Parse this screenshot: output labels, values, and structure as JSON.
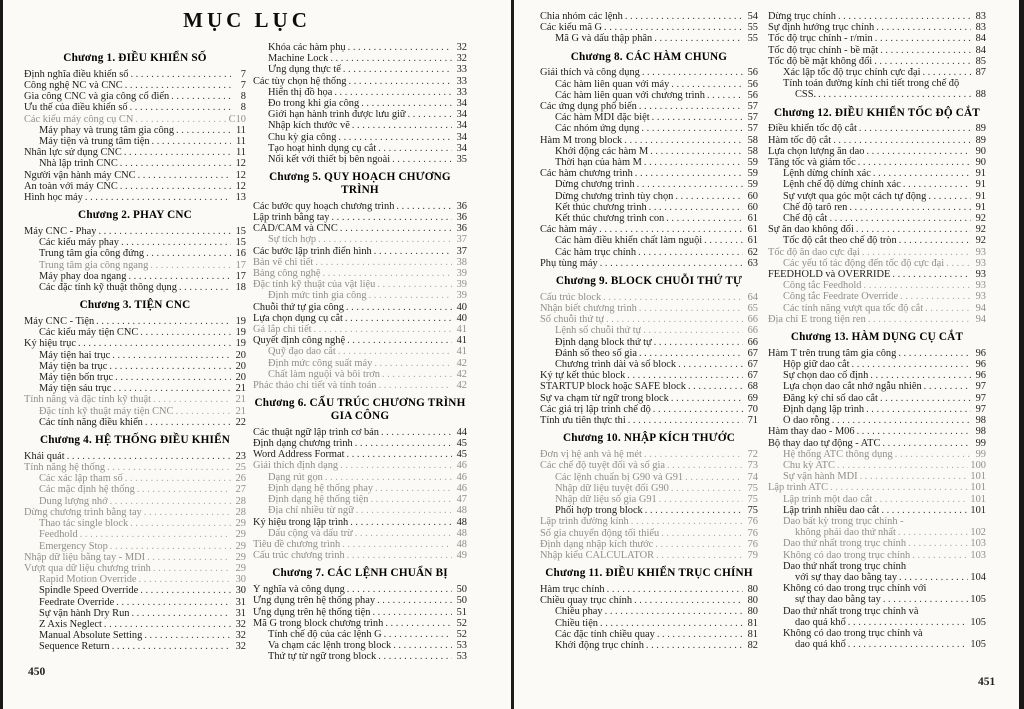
{
  "title": "MỤC LỤC",
  "folio_left": "450",
  "folio_right": "451",
  "columns": [
    {
      "items": [
        {
          "h": "Chương 1. ĐIỀU KHIỂN SỐ"
        },
        {
          "t": "Định nghĩa điều khiển số",
          "p": "7"
        },
        {
          "t": "Công nghệ NC và CNC",
          "p": "7"
        },
        {
          "t": "Gia công CNC và gia công cổ điển",
          "p": "8"
        },
        {
          "t": "Ưu thế của điều khiển số",
          "p": "8"
        },
        {
          "t": "Các kiểu máy công cụ CN",
          "p": "C10",
          "f": 1
        },
        {
          "t": "Máy phay và trung tâm gia công",
          "p": "11",
          "i": 1
        },
        {
          "t": "Máy tiện và trung tâm tiện",
          "p": "11",
          "i": 1
        },
        {
          "t": "Nhân lực sử dụng CNC",
          "p": "11"
        },
        {
          "t": "Nhà lập trình CNC",
          "p": "12",
          "i": 1
        },
        {
          "t": "Người vận hành máy CNC",
          "p": "12"
        },
        {
          "t": "An toàn với máy CNC",
          "p": "12"
        },
        {
          "t": "Hình học máy",
          "p": "13"
        },
        {
          "h": "Chương 2. PHAY CNC"
        },
        {
          "t": "Máy CNC - Phay",
          "p": "15"
        },
        {
          "t": "Các kiểu máy phay",
          "p": "15",
          "i": 1
        },
        {
          "t": "Trung tâm gia công đứng",
          "p": "16",
          "i": 1
        },
        {
          "t": "Trung tâm gia công ngang",
          "p": "17",
          "i": 1,
          "f": 1
        },
        {
          "t": "Máy phay doa ngang",
          "p": "17",
          "i": 1
        },
        {
          "t": "Các đặc tính kỹ thuật thông dụng",
          "p": "18",
          "i": 1
        },
        {
          "h": "Chương 3. TIỆN CNC"
        },
        {
          "t": "Máy CNC - Tiện",
          "p": "19"
        },
        {
          "t": "Các kiểu máy tiện CNC",
          "p": "19",
          "i": 1
        },
        {
          "t": "Ký hiệu trục",
          "p": "19"
        },
        {
          "t": "Máy tiện hai trục",
          "p": "20",
          "i": 1
        },
        {
          "t": "Máy tiện ba trục",
          "p": "20",
          "i": 1
        },
        {
          "t": "Máy tiện bốn trục",
          "p": "20",
          "i": 1
        },
        {
          "t": "Máy tiện sáu trục",
          "p": "21",
          "i": 1
        },
        {
          "t": "Tính năng và đặc tính kỹ thuật",
          "p": "21",
          "f": 1
        },
        {
          "t": "Đặc tính kỹ thuật máy tiện CNC",
          "p": "21",
          "i": 1,
          "f": 1
        },
        {
          "t": "Các tính năng điều khiển",
          "p": "22",
          "i": 1
        },
        {
          "h": "Chương 4. HỆ THỐNG ĐIỀU KHIỂN"
        },
        {
          "t": "Khái quát",
          "p": "23"
        },
        {
          "t": "Tính năng hệ thống",
          "p": "25",
          "f": 1
        },
        {
          "t": "Các xác lập tham số",
          "p": "26",
          "i": 1,
          "f": 1
        },
        {
          "t": "Các mặc định hệ thống",
          "p": "27",
          "i": 1,
          "f": 1
        },
        {
          "t": "Dung lượng nhớ",
          "p": "28",
          "i": 1,
          "f": 1
        },
        {
          "t": "Dừng chương trình bằng tay",
          "p": "28",
          "f": 1
        },
        {
          "t": "Thao tác single block",
          "p": "29",
          "i": 1,
          "f": 1
        },
        {
          "t": "Feedhold",
          "p": "29",
          "i": 1,
          "f": 1
        },
        {
          "t": "Emergency Stop",
          "p": "29",
          "i": 1,
          "f": 1
        },
        {
          "t": "Nhập dữ liệu bằng tay - MDI",
          "p": "29",
          "f": 1
        },
        {
          "t": "Vượt qua dữ liệu chương trình",
          "p": "29",
          "f": 1
        },
        {
          "t": "Rapid Motion Override",
          "p": "30",
          "i": 1,
          "f": 1
        },
        {
          "t": "Spindle Speed Override",
          "p": "30",
          "i": 1
        },
        {
          "t": "Feedrate Override",
          "p": "31",
          "i": 1
        },
        {
          "t": "Sự vận hành Dry Run",
          "p": "31",
          "i": 1
        },
        {
          "t": "Z Axis Neglect",
          "p": "32",
          "i": 1
        },
        {
          "t": "Manual Absolute Setting",
          "p": "32",
          "i": 1
        },
        {
          "t": "Sequence Return",
          "p": "32",
          "i": 1
        }
      ]
    },
    {
      "items": [
        {
          "t": "Khóa các hàm phụ",
          "p": "32",
          "i": 1
        },
        {
          "t": "Machine Lock",
          "p": "32",
          "i": 1
        },
        {
          "t": "Ứng dụng thực tế",
          "p": "33",
          "i": 1
        },
        {
          "t": "Các tùy chọn hệ thống",
          "p": "33"
        },
        {
          "t": "Hiển thị đồ họa",
          "p": "33",
          "i": 1
        },
        {
          "t": "Đo trong khi gia công",
          "p": "34",
          "i": 1
        },
        {
          "t": "Giới hạn hành trình được lưu giữ",
          "p": "34",
          "i": 1
        },
        {
          "t": "Nhập kích thước vẽ",
          "p": "34",
          "i": 1
        },
        {
          "t": "Chu kỳ gia công",
          "p": "34",
          "i": 1
        },
        {
          "t": "Tạo hoạt hình dụng cụ cắt",
          "p": "34",
          "i": 1
        },
        {
          "t": "Nối kết với thiết bị bên ngoài",
          "p": "35",
          "i": 1
        },
        {
          "h": "Chương 5. QUY HOẠCH CHƯƠNG TRÌNH"
        },
        {
          "t": "Các bước quy hoạch chương trình",
          "p": "36"
        },
        {
          "t": "Lập trình bằng tay",
          "p": "36"
        },
        {
          "t": "CAD/CAM và CNC",
          "p": "36"
        },
        {
          "t": "Sự tích hợp",
          "p": "37",
          "i": 1,
          "f": 1
        },
        {
          "t": "Các bước lập trình điển hình",
          "p": "37"
        },
        {
          "t": "Bản vẽ chi tiết",
          "p": "38",
          "f": 1
        },
        {
          "t": "Bảng công nghệ",
          "p": "39",
          "f": 1
        },
        {
          "t": "Đặc tính kỹ thuật của vật liệu",
          "p": "39",
          "f": 1
        },
        {
          "t": "Định mức tinh gia công",
          "p": "39",
          "i": 1,
          "f": 1
        },
        {
          "t": "Chuỗi thứ tự gia công",
          "p": "40"
        },
        {
          "t": "Lựa chọn dụng cụ cắt",
          "p": "40"
        },
        {
          "t": "Gá lắp chi tiết",
          "p": "41",
          "f": 1
        },
        {
          "t": "Quyết định công nghệ",
          "p": "41"
        },
        {
          "t": "Quỹ đạo dao cắt",
          "p": "41",
          "i": 1,
          "f": 1
        },
        {
          "t": "Định mức công suất máy",
          "p": "42",
          "i": 1,
          "f": 1
        },
        {
          "t": "Chất làm nguội và bôi trơn",
          "p": "42",
          "i": 1,
          "f": 1
        },
        {
          "t": "Phác thảo chi tiết và tính toán",
          "p": "42",
          "f": 1
        },
        {
          "h": [
            "Chương 6. CẤU TRÚC CHƯƠNG TRÌNH",
            "GIA CÔNG"
          ]
        },
        {
          "t": "Các thuật ngữ lập trình cơ bản",
          "p": "44"
        },
        {
          "t": "Định dạng chương trình",
          "p": "45"
        },
        {
          "t": "Word Address Format",
          "p": "45"
        },
        {
          "t": "Giải thích định dạng",
          "p": "46",
          "f": 1
        },
        {
          "t": "Dạng rút gọn",
          "p": "46",
          "i": 1,
          "f": 1
        },
        {
          "t": "Định dạng hệ thống phay",
          "p": "46",
          "i": 1,
          "f": 1
        },
        {
          "t": "Định dạng hệ thống tiện",
          "p": "47",
          "i": 1,
          "f": 1
        },
        {
          "t": "Địa chỉ nhiều từ ngữ",
          "p": "48",
          "i": 1,
          "f": 1
        },
        {
          "t": "Ký hiệu trong lập trình",
          "p": "48"
        },
        {
          "t": "Dấu cộng và dấu trừ",
          "p": "48",
          "i": 1,
          "f": 1
        },
        {
          "t": "Tiêu đề chương trình",
          "p": "48",
          "f": 1
        },
        {
          "t": "Cấu trúc chương trình",
          "p": "49",
          "f": 1
        },
        {
          "h": "Chương 7. CÁC LỆNH CHUẨN BỊ"
        },
        {
          "t": "Ý nghĩa và công dụng",
          "p": "50"
        },
        {
          "t": "Ứng dụng trên hệ thống phay",
          "p": "50"
        },
        {
          "t": "Ứng dụng trên hệ thống tiện",
          "p": "51"
        },
        {
          "t": "Mã G trong block chương trình",
          "p": "52"
        },
        {
          "t": "Tính chế độ của các lệnh G",
          "p": "52",
          "i": 1
        },
        {
          "t": "Va chạm các lệnh trong block",
          "p": "53",
          "i": 1
        },
        {
          "t": "Thứ tự từ ngữ trong block",
          "p": "53",
          "i": 1
        }
      ]
    },
    {
      "items": [
        {
          "t": "Chia nhóm các lệnh",
          "p": "54"
        },
        {
          "t": "Các kiểu mã G",
          "p": "55"
        },
        {
          "t": "Mã G và dấu thập phân",
          "p": "55",
          "i": 1
        },
        {
          "h": "Chương 8. CÁC HÀM CHUNG"
        },
        {
          "t": "Giải thích và công dụng",
          "p": "56"
        },
        {
          "t": "Các hàm liên quan với máy",
          "p": "56",
          "i": 1
        },
        {
          "t": "Các hàm liên quan với chương trình",
          "p": "56",
          "i": 1
        },
        {
          "t": "Các ứng dụng phổ biến",
          "p": "57"
        },
        {
          "t": "Các hàm MDI đặc biệt",
          "p": "57",
          "i": 1
        },
        {
          "t": "Các nhóm ứng dụng",
          "p": "57",
          "i": 1
        },
        {
          "t": "Hàm M trong block",
          "p": "58"
        },
        {
          "t": "Khởi động các hàm M",
          "p": "58",
          "i": 1
        },
        {
          "t": "Thời hạn của hàm M",
          "p": "59",
          "i": 1
        },
        {
          "t": "Các hàm chương trình",
          "p": "59"
        },
        {
          "t": "Dừng chương trình",
          "p": "59",
          "i": 1
        },
        {
          "t": "Dừng chương trình tùy chọn",
          "p": "60",
          "i": 1
        },
        {
          "t": "Kết thúc chương trình",
          "p": "60",
          "i": 1
        },
        {
          "t": "Kết thúc chương trình con",
          "p": "61",
          "i": 1
        },
        {
          "t": "Các hàm máy",
          "p": "61"
        },
        {
          "t": "Các hàm điều khiển chất làm nguội",
          "p": "61",
          "i": 1
        },
        {
          "t": "Các hàm trục chính",
          "p": "62",
          "i": 1
        },
        {
          "t": "Phụ tùng máy",
          "p": "63"
        },
        {
          "h": "Chương 9. BLOCK CHUỖI THỨ TỰ"
        },
        {
          "t": "Cấu trúc block",
          "p": "64",
          "f": 1
        },
        {
          "t": "Nhận biết chương trình",
          "p": "65",
          "f": 1
        },
        {
          "t": "Số chuỗi thứ tự",
          "p": "66",
          "f": 1
        },
        {
          "t": "Lệnh số chuỗi thứ tự",
          "p": "66",
          "i": 1,
          "f": 1
        },
        {
          "t": "Định dạng block thứ tự",
          "p": "66",
          "i": 1
        },
        {
          "t": "Đánh số theo số gia",
          "p": "67",
          "i": 1
        },
        {
          "t": "Chương trình dài và số block",
          "p": "67",
          "i": 1
        },
        {
          "t": "Ký tự kết thúc block",
          "p": "67"
        },
        {
          "t": "STARTUP block hoặc SAFE block",
          "p": "68"
        },
        {
          "t": "Sự va chạm từ ngữ trong block",
          "p": "69"
        },
        {
          "t": "Các giá trị lập trình chế độ",
          "p": "70"
        },
        {
          "t": "Tính ưu tiên thực thi",
          "p": "71"
        },
        {
          "h": "Chương 10. NHẬP KÍCH THƯỚC"
        },
        {
          "t": "Đơn vị hệ anh và hệ mét",
          "p": "72",
          "f": 1
        },
        {
          "t": "Các chế độ tuyệt đối và số gia",
          "p": "73",
          "f": 1
        },
        {
          "t": "Các lệnh chuẩn bị G90 và G91",
          "p": "74",
          "i": 1,
          "f": 1
        },
        {
          "t": "Nhập dữ liệu tuyệt đối G90",
          "p": "75",
          "i": 1,
          "f": 1
        },
        {
          "t": "Nhập dữ liệu số gia G91",
          "p": "75",
          "i": 1,
          "f": 1
        },
        {
          "t": "Phối hợp trong block",
          "p": "75",
          "i": 1
        },
        {
          "t": "Lập trình đường kính",
          "p": "76",
          "f": 1
        },
        {
          "t": "Số gia chuyển động tối thiểu",
          "p": "76",
          "f": 1
        },
        {
          "t": "Định dạng nhập kích thước",
          "p": "76",
          "f": 1
        },
        {
          "t": "Nhập kiểu CALCULATOR",
          "p": "79",
          "f": 1
        },
        {
          "h": "Chương 11. ĐIỀU KHIỂN TRỤC CHÍNH"
        },
        {
          "t": "Hàm trục chính",
          "p": "80"
        },
        {
          "t": "Chiều quay trục chính",
          "p": "80"
        },
        {
          "t": "Chiều phay",
          "p": "80",
          "i": 1
        },
        {
          "t": "Chiều tiện",
          "p": "81",
          "i": 1
        },
        {
          "t": "Các đặc tính chiều quay",
          "p": "81",
          "i": 1
        },
        {
          "t": "Khởi động trục chính",
          "p": "82",
          "i": 1
        }
      ]
    },
    {
      "items": [
        {
          "t": "Dừng trục chính",
          "p": "83"
        },
        {
          "t": "Sự định hướng trục chính",
          "p": "83"
        },
        {
          "t": "Tốc độ trục chính - r/min",
          "p": "84"
        },
        {
          "t": "Tốc độ trục chính - bề mặt",
          "p": "84"
        },
        {
          "t": "Tốc độ bề mặt không đổi",
          "p": "85"
        },
        {
          "t": "Xác lập tốc độ trục chính cực đại",
          "p": "87",
          "i": 1
        },
        {
          "t": "Tính toán đường kính chi tiết trong chế độ",
          "t2": "CSS.",
          "p": "88",
          "i": 1
        },
        {
          "h": "Chương 12. ĐIỀU KHIỂN TỐC ĐỘ CẮT"
        },
        {
          "t": "Điều khiển tốc độ cắt",
          "p": "89"
        },
        {
          "t": "Hàm tốc độ cắt",
          "p": "89"
        },
        {
          "t": "Lựa chọn lượng ăn dao",
          "p": "90"
        },
        {
          "t": "Tăng tốc và giảm tốc",
          "p": "90"
        },
        {
          "t": "Lệnh dừng chính xác",
          "p": "91",
          "i": 1
        },
        {
          "t": "Lệnh chế độ dừng chính xác",
          "p": "91",
          "i": 1
        },
        {
          "t": "Sự vượt qua góc một cách tự động",
          "p": "91",
          "i": 1
        },
        {
          "t": "Chế độ tarô ren",
          "p": "91",
          "i": 1
        },
        {
          "t": "Chế độ cắt",
          "p": "92",
          "i": 1
        },
        {
          "t": "Sự ăn dao không đổi",
          "p": "92"
        },
        {
          "t": "Tốc độ cắt theo chế độ tròn",
          "p": "92",
          "i": 1
        },
        {
          "t": "Tốc độ ăn dao cực đại",
          "p": "93",
          "f": 1
        },
        {
          "t": "Các yếu tố tác động đến tốc độ cực đại",
          "p": "93",
          "i": 1,
          "f": 1
        },
        {
          "t": "FEEDHOLD và OVERRIDE",
          "p": "93"
        },
        {
          "t": "Công tắc Feedhold",
          "p": "93",
          "i": 1,
          "f": 1
        },
        {
          "t": "Công tắc Feedrate Override",
          "p": "93",
          "i": 1,
          "f": 1
        },
        {
          "t": "Các tính năng vượt qua tốc độ cắt",
          "p": "94",
          "i": 1,
          "f": 1
        },
        {
          "t": "Địa chỉ E trong tiện ren",
          "p": "94",
          "f": 1
        },
        {
          "h": "Chương 13. HÀM DỤNG CỤ CẮT"
        },
        {
          "t": "Hàm T trên trung tâm gia công",
          "p": "96"
        },
        {
          "t": "Hộp giữ dao cắt",
          "p": "96",
          "i": 1
        },
        {
          "t": "Sự chọn dao cố định",
          "p": "96",
          "i": 1
        },
        {
          "t": "Lựa chọn dao cắt nhớ ngẫu nhiên",
          "p": "97",
          "i": 1
        },
        {
          "t": "Đăng ký chỉ số dao cắt",
          "p": "97",
          "i": 1
        },
        {
          "t": "Định dạng lập trình",
          "p": "97",
          "i": 1
        },
        {
          "t": "Ổ dao rỗng",
          "p": "98",
          "i": 1
        },
        {
          "t": "Hàm thay dao - M06",
          "p": "98"
        },
        {
          "t": "Bộ thay dao tự động - ATC",
          "p": "99"
        },
        {
          "t": "Hệ thống ATC thông dụng",
          "p": "99",
          "i": 1,
          "f": 1
        },
        {
          "t": "Chu kỳ ATC",
          "p": "100",
          "i": 1,
          "f": 1
        },
        {
          "t": "Sự vận hành MDI",
          "p": "101",
          "i": 1,
          "f": 1
        },
        {
          "t": "Lập trình ATC",
          "p": "101",
          "f": 1
        },
        {
          "t": "Lập trình một dao cắt",
          "p": "101",
          "i": 1,
          "f": 1
        },
        {
          "t": "Lập trình nhiều dao cắt",
          "p": "101",
          "i": 1
        },
        {
          "t": "Dao bất kỳ trong trục chính -",
          "t2": "không phải dao thứ nhất",
          "p": "102",
          "i": 1,
          "f": 1
        },
        {
          "t": "Dao thứ nhất trong trục chính",
          "p": "103",
          "i": 1,
          "f": 1
        },
        {
          "t": "Không có dao trong trục chính",
          "p": "103",
          "i": 1,
          "f": 1
        },
        {
          "t": "Dao thứ nhất trong trục chính",
          "t2": "với sự thay dao bằng tay",
          "p": "104",
          "i": 1
        },
        {
          "t": "Không có dao trong trục chính với",
          "t2": "sự thay dao bằng tay",
          "p": "105",
          "i": 1
        },
        {
          "t": "Dao thứ nhất trong trục chính và",
          "t2": "dao quá khổ",
          "p": "105",
          "i": 1
        },
        {
          "t": "Không có dao trong trục chính và",
          "t2": "dao quá khổ",
          "p": "105",
          "i": 1
        }
      ]
    }
  ]
}
